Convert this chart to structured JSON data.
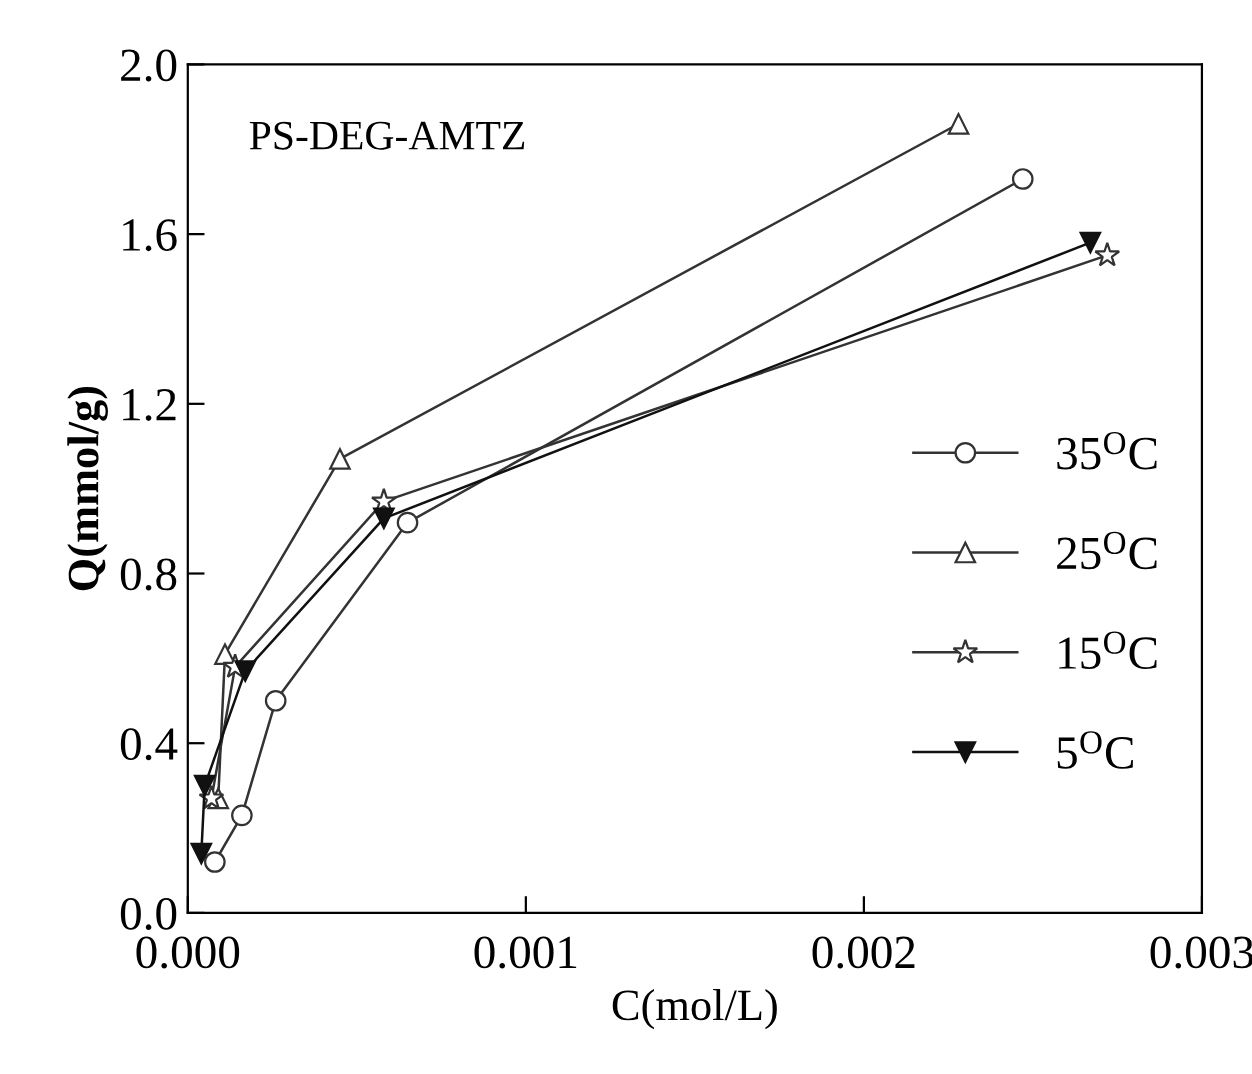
{
  "chart_data": {
    "type": "line",
    "xlabel": "C(mol/L)",
    "ylabel": "Q(mmol/g)",
    "annotations": [
      "PS-DEG-AMTZ"
    ],
    "xlim": [
      0,
      0.003
    ],
    "ylim": [
      0,
      2.0
    ],
    "xticks": [
      {
        "value": 0,
        "label": "0.000"
      },
      {
        "value": 0.001,
        "label": "0.001"
      },
      {
        "value": 0.002,
        "label": "0.002"
      },
      {
        "value": 0.003,
        "label": "0.003"
      }
    ],
    "yticks": [
      {
        "value": 0,
        "label": "0.0"
      },
      {
        "value": 0.4,
        "label": "0.4"
      },
      {
        "value": 0.8,
        "label": "0.8"
      },
      {
        "value": 1.2,
        "label": "1.2"
      },
      {
        "value": 1.6,
        "label": "1.6"
      },
      {
        "value": 2.0,
        "label": "2.0"
      }
    ],
    "legend": "right",
    "grid": false,
    "line_style": "solid",
    "series": [
      {
        "name": "35$^{O}$C",
        "color": "#333333",
        "marker": "circle",
        "x": [
          8e-05,
          0.00016,
          0.00026,
          0.00065,
          0.00247
        ],
        "values": [
          0.12,
          0.23,
          0.5,
          0.92,
          1.73
        ]
      },
      {
        "name": "25$^{O}$C",
        "color": "#333333",
        "marker": "triangle",
        "x": [
          9e-05,
          0.00011,
          0.00045,
          0.00228
        ],
        "values": [
          0.27,
          0.61,
          1.07,
          1.86
        ]
      },
      {
        "name": "15$^{O}$C",
        "color": "#333333",
        "marker": "star",
        "x": [
          7e-05,
          0.00014,
          0.00058,
          0.00272
        ],
        "values": [
          0.27,
          0.58,
          0.97,
          1.55
        ]
      },
      {
        "name": "5$^{O}$C",
        "color": "#111111",
        "marker": "triangle_down_filled",
        "x": [
          4e-05,
          5e-05,
          0.00017,
          0.00058,
          0.00267
        ],
        "values": [
          0.14,
          0.3,
          0.57,
          0.93,
          1.58
        ]
      }
    ]
  }
}
